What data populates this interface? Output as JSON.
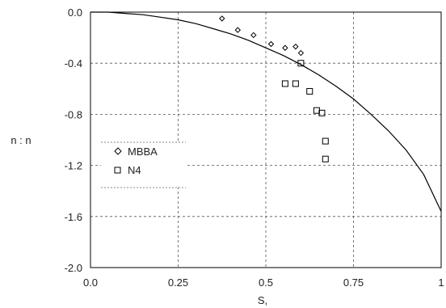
{
  "chart_data": {
    "type": "scatter",
    "xlabel": "S,",
    "ylabel": "n : n",
    "xlim": [
      0,
      1
    ],
    "ylim": [
      -2.0,
      0.0
    ],
    "xticks": [
      "0.0",
      "0.25",
      "0.5",
      "0.75",
      "1"
    ],
    "xtick_values": [
      0,
      0.25,
      0.5,
      0.75,
      1
    ],
    "yticks": [
      "0.0",
      "-0.4",
      "-0.8",
      "-1.2",
      "-1.6",
      "-2.0"
    ],
    "ytick_values": [
      0,
      -0.4,
      -0.8,
      -1.2,
      -1.6,
      -2.0
    ],
    "grid": true,
    "legend_placement": "left-middle",
    "curve": {
      "x": [
        0,
        0.05,
        0.1,
        0.15,
        0.2,
        0.25,
        0.3,
        0.35,
        0.4,
        0.45,
        0.5,
        0.55,
        0.6,
        0.65,
        0.7,
        0.75,
        0.8,
        0.85,
        0.9,
        0.95,
        1.0
      ],
      "y": [
        0.0,
        0.0,
        -0.01,
        -0.02,
        -0.04,
        -0.06,
        -0.09,
        -0.13,
        -0.17,
        -0.22,
        -0.28,
        -0.34,
        -0.41,
        -0.49,
        -0.58,
        -0.68,
        -0.8,
        -0.93,
        -1.08,
        -1.27,
        -1.56
      ]
    },
    "series": [
      {
        "name": "MBBA",
        "marker": "diamond",
        "x": [
          0.375,
          0.42,
          0.465,
          0.515,
          0.555,
          0.585,
          0.6
        ],
        "y": [
          -0.05,
          -0.14,
          -0.18,
          -0.25,
          -0.28,
          -0.27,
          -0.32
        ]
      },
      {
        "name": "N4",
        "marker": "square",
        "x": [
          0.6,
          0.555,
          0.585,
          0.625,
          0.645,
          0.66,
          0.67,
          0.67
        ],
        "y": [
          -0.4,
          -0.56,
          -0.56,
          -0.62,
          -0.77,
          -0.79,
          -1.01,
          -1.15
        ]
      }
    ]
  }
}
